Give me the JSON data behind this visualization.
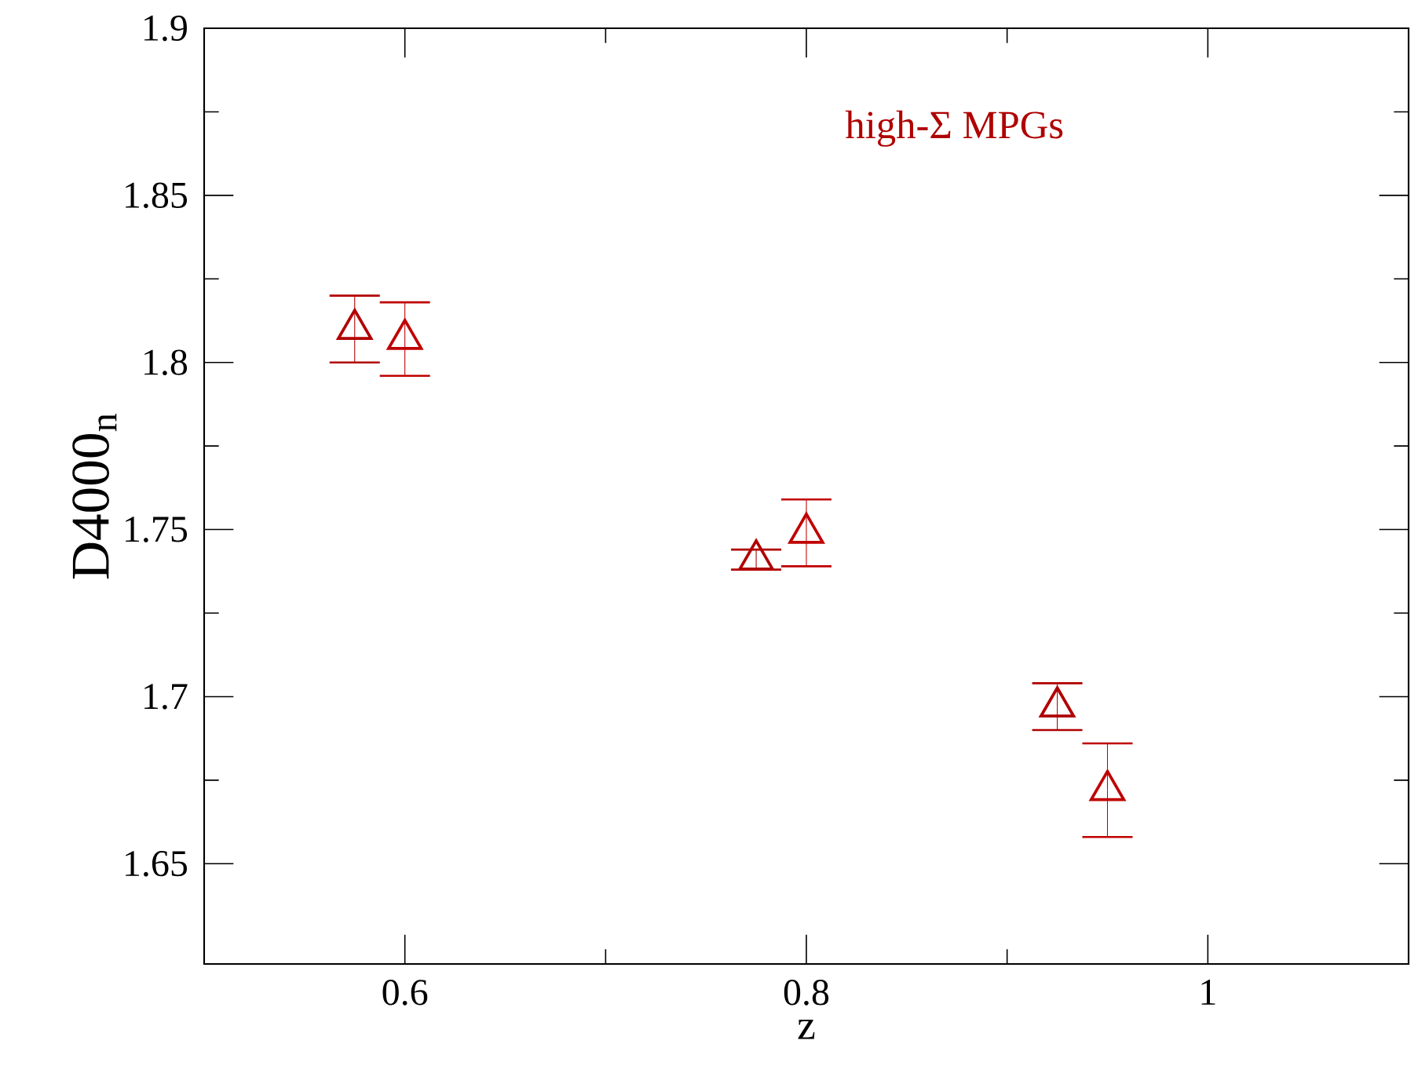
{
  "chart_data": {
    "type": "scatter",
    "xlabel": "z",
    "ylabel": "D4000$_{n}$",
    "annotations": [
      "high-Σ MPGs"
    ],
    "series": [
      {
        "color": "#b00000",
        "marker": "triangle",
        "x": [
          0.575,
          0.775,
          0.925
        ],
        "values": [
          1.81,
          1.741,
          1.697
        ],
        "errors": [
          0.01,
          0.003,
          0.007
        ]
      },
      {
        "color": "#c00000",
        "marker": "triangle",
        "x": [
          0.6,
          0.8,
          0.95
        ],
        "values": [
          1.807,
          1.749,
          1.672
        ],
        "errors": [
          0.011,
          0.01,
          0.014
        ]
      }
    ],
    "xlim": [
      0.5,
      1.1
    ],
    "ylim": [
      1.62,
      1.9
    ],
    "xticks": [
      0.6,
      0.8,
      1
    ],
    "yticks": [
      1.65,
      1.7,
      1.75,
      1.8,
      1.85,
      1.9
    ],
    "grid": false
  }
}
